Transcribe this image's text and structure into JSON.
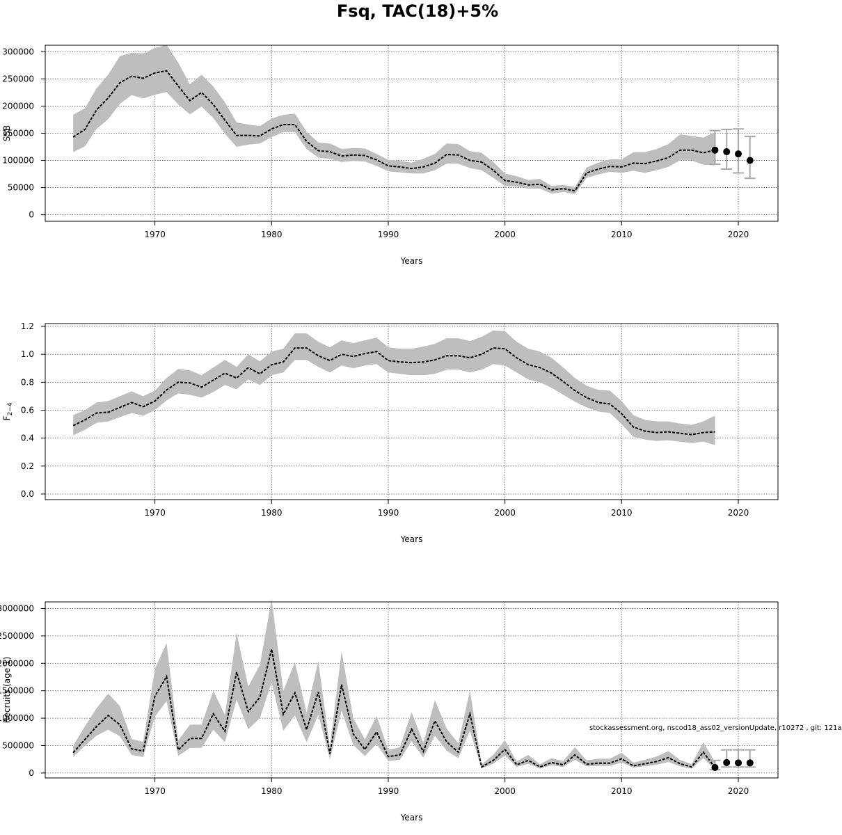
{
  "title": "Fsq, TAC(18)+5%",
  "footnote": "stockassessment.org, nscod18_ass02_versionUpdate, r10272 , git: 121a",
  "colors": {
    "band": "#bebebe",
    "line": "#000000",
    "grid": "#555555",
    "errorbar": "#a8a8a8"
  },
  "chart_data": [
    {
      "type": "line",
      "xlabel": "Years",
      "ylabel": "SSB",
      "xlim": [
        1960.6,
        2023.4
      ],
      "ylim": [
        -12000,
        312000
      ],
      "yticks": [
        0,
        50000,
        100000,
        150000,
        200000,
        250000,
        300000
      ],
      "ytick_labels": [
        "0",
        "50000",
        "100000",
        "150000",
        "200000",
        "250000",
        "300000"
      ],
      "xticks": [
        1970,
        1980,
        1990,
        2000,
        2010,
        2020
      ],
      "xtick_labels": [
        "1970",
        "1980",
        "1990",
        "2000",
        "2010",
        "2020"
      ],
      "grid": true,
      "x": [
        1963,
        1964,
        1965,
        1966,
        1967,
        1968,
        1969,
        1970,
        1971,
        1972,
        1973,
        1974,
        1975,
        1976,
        1977,
        1978,
        1979,
        1980,
        1981,
        1982,
        1983,
        1984,
        1985,
        1986,
        1987,
        1988,
        1989,
        1990,
        1991,
        1992,
        1993,
        1994,
        1995,
        1996,
        1997,
        1998,
        1999,
        2000,
        2001,
        2002,
        2003,
        2004,
        2005,
        2006,
        2007,
        2008,
        2009,
        2010,
        2011,
        2012,
        2013,
        2014,
        2015,
        2016,
        2017,
        2018
      ],
      "estimate": [
        143000,
        157000,
        193000,
        215000,
        243000,
        255000,
        251000,
        261000,
        265000,
        237000,
        210000,
        225000,
        203000,
        174000,
        146000,
        146000,
        145000,
        158000,
        166000,
        166000,
        135000,
        118000,
        116000,
        108000,
        110000,
        109000,
        101000,
        90000,
        88000,
        85000,
        88000,
        95000,
        111000,
        110000,
        100000,
        97000,
        82000,
        63000,
        60000,
        55000,
        56000,
        46000,
        48000,
        44000,
        77000,
        84000,
        89000,
        88000,
        95000,
        94000,
        99000,
        105000,
        119000,
        119000,
        114000,
        119000
      ],
      "lower": [
        115000,
        126000,
        158000,
        176000,
        204000,
        220000,
        214000,
        221000,
        226000,
        203000,
        185000,
        199000,
        178000,
        149000,
        125000,
        129000,
        131000,
        143000,
        152000,
        152000,
        121000,
        105000,
        103000,
        97000,
        99000,
        98000,
        90000,
        80000,
        78000,
        76000,
        76000,
        82000,
        94000,
        94000,
        86000,
        82000,
        68000,
        53000,
        52000,
        48000,
        48000,
        39000,
        42000,
        38000,
        68000,
        74000,
        79000,
        77000,
        81000,
        77000,
        82000,
        88000,
        100000,
        100000,
        92000,
        91000
      ],
      "upper": [
        184000,
        196000,
        233000,
        258000,
        292000,
        298000,
        297000,
        307000,
        313000,
        280000,
        240000,
        258000,
        236000,
        207000,
        170000,
        166000,
        163000,
        177000,
        184000,
        186000,
        153000,
        133000,
        131000,
        121000,
        123000,
        122000,
        112000,
        101000,
        99000,
        96000,
        103000,
        112000,
        131000,
        130000,
        117000,
        114000,
        97000,
        76000,
        71000,
        64000,
        66000,
        53000,
        55000,
        51000,
        87000,
        96000,
        102000,
        102000,
        115000,
        115000,
        121000,
        130000,
        148000,
        145000,
        142000,
        152000
      ],
      "forecast": {
        "x": [
          2018,
          2019,
          2020,
          2021
        ],
        "estimate": [
          119000,
          116000,
          112000,
          100000
        ],
        "lower": [
          93000,
          84000,
          77000,
          67000
        ],
        "upper": [
          155000,
          157000,
          158000,
          144000
        ]
      }
    },
    {
      "type": "line",
      "xlabel": "Years",
      "ylabel": "F",
      "ylabel_sub": "2−4",
      "xlim": [
        1960.6,
        2023.4
      ],
      "ylim": [
        -0.04,
        1.22
      ],
      "yticks": [
        0,
        0.2,
        0.4,
        0.6,
        0.8,
        1,
        1.2
      ],
      "ytick_labels": [
        "0.0",
        "0.2",
        "0.4",
        "0.6",
        "0.8",
        "1.0",
        "1.2"
      ],
      "xticks": [
        1970,
        1980,
        1990,
        2000,
        2010,
        2020
      ],
      "xtick_labels": [
        "1970",
        "1980",
        "1990",
        "2000",
        "2010",
        "2020"
      ],
      "grid": true,
      "x": [
        1963,
        1964,
        1965,
        1966,
        1967,
        1968,
        1969,
        1970,
        1971,
        1972,
        1973,
        1974,
        1975,
        1976,
        1977,
        1978,
        1979,
        1980,
        1981,
        1982,
        1983,
        1984,
        1985,
        1986,
        1987,
        1988,
        1989,
        1990,
        1991,
        1992,
        1993,
        1994,
        1995,
        1996,
        1997,
        1998,
        1999,
        2000,
        2001,
        2002,
        2003,
        2004,
        2005,
        2006,
        2007,
        2008,
        2009,
        2010,
        2011,
        2012,
        2013,
        2014,
        2015,
        2016,
        2017,
        2018
      ],
      "estimate": [
        0.49,
        0.53,
        0.58,
        0.585,
        0.62,
        0.655,
        0.625,
        0.665,
        0.745,
        0.8,
        0.795,
        0.765,
        0.815,
        0.865,
        0.83,
        0.905,
        0.86,
        0.925,
        0.945,
        1.045,
        1.045,
        0.99,
        0.955,
        1.0,
        0.985,
        1.005,
        1.02,
        0.955,
        0.945,
        0.94,
        0.945,
        0.96,
        0.99,
        0.99,
        0.975,
        1.0,
        1.045,
        1.04,
        0.975,
        0.925,
        0.905,
        0.865,
        0.805,
        0.74,
        0.69,
        0.655,
        0.645,
        0.575,
        0.48,
        0.45,
        0.44,
        0.445,
        0.435,
        0.425,
        0.44,
        0.445
      ],
      "lower": [
        0.42,
        0.46,
        0.51,
        0.52,
        0.55,
        0.58,
        0.56,
        0.6,
        0.67,
        0.72,
        0.71,
        0.69,
        0.73,
        0.78,
        0.75,
        0.82,
        0.78,
        0.85,
        0.87,
        0.96,
        0.96,
        0.91,
        0.87,
        0.92,
        0.9,
        0.92,
        0.93,
        0.87,
        0.86,
        0.85,
        0.85,
        0.86,
        0.89,
        0.89,
        0.87,
        0.89,
        0.93,
        0.92,
        0.87,
        0.82,
        0.8,
        0.76,
        0.71,
        0.66,
        0.62,
        0.59,
        0.58,
        0.5,
        0.41,
        0.39,
        0.38,
        0.385,
        0.375,
        0.365,
        0.375,
        0.35
      ],
      "upper": [
        0.565,
        0.6,
        0.655,
        0.665,
        0.7,
        0.735,
        0.7,
        0.74,
        0.83,
        0.895,
        0.885,
        0.85,
        0.905,
        0.96,
        0.91,
        1.0,
        0.95,
        1.02,
        1.04,
        1.15,
        1.15,
        1.09,
        1.05,
        1.1,
        1.08,
        1.1,
        1.12,
        1.05,
        1.04,
        1.04,
        1.055,
        1.075,
        1.115,
        1.115,
        1.095,
        1.125,
        1.17,
        1.165,
        1.09,
        1.04,
        1.02,
        0.975,
        0.905,
        0.83,
        0.775,
        0.745,
        0.74,
        0.665,
        0.565,
        0.53,
        0.52,
        0.52,
        0.505,
        0.495,
        0.52,
        0.56
      ]
    },
    {
      "type": "line",
      "xlabel": "Years",
      "ylabel": "Recruits (age 1)",
      "xlim": [
        1960.6,
        2023.4
      ],
      "ylim": [
        -90000,
        3120000
      ],
      "yticks": [
        0,
        500000,
        1000000,
        1500000,
        2000000,
        2500000,
        3000000
      ],
      "ytick_labels": [
        "0",
        "500000",
        "1000000",
        "1500000",
        "2000000",
        "2500000",
        "3000000"
      ],
      "xticks": [
        1970,
        1980,
        1990,
        2000,
        2010,
        2020
      ],
      "xtick_labels": [
        "1970",
        "1980",
        "1990",
        "2000",
        "2010",
        "2020"
      ],
      "grid": true,
      "x": [
        1963,
        1964,
        1965,
        1966,
        1967,
        1968,
        1969,
        1970,
        1971,
        1972,
        1973,
        1974,
        1975,
        1976,
        1977,
        1978,
        1979,
        1980,
        1981,
        1982,
        1983,
        1984,
        1985,
        1986,
        1987,
        1988,
        1989,
        1990,
        1991,
        1992,
        1993,
        1994,
        1995,
        1996,
        1997,
        1998,
        1999,
        2000,
        2001,
        2002,
        2003,
        2004,
        2005,
        2006,
        2007,
        2008,
        2009,
        2010,
        2011,
        2012,
        2013,
        2014,
        2015,
        2016,
        2017,
        2018
      ],
      "estimate": [
        370000,
        610000,
        850000,
        1050000,
        880000,
        440000,
        400000,
        1400000,
        1760000,
        420000,
        630000,
        630000,
        1080000,
        760000,
        1840000,
        1120000,
        1380000,
        2260000,
        1070000,
        1460000,
        790000,
        1480000,
        350000,
        1610000,
        710000,
        430000,
        750000,
        300000,
        330000,
        800000,
        390000,
        950000,
        570000,
        380000,
        1080000,
        110000,
        230000,
        430000,
        150000,
        230000,
        110000,
        190000,
        150000,
        330000,
        160000,
        180000,
        180000,
        260000,
        130000,
        170000,
        210000,
        280000,
        170000,
        110000,
        380000,
        100000
      ],
      "lower": [
        290000,
        500000,
        680000,
        790000,
        670000,
        330000,
        290000,
        1030000,
        1310000,
        310000,
        460000,
        460000,
        790000,
        560000,
        1340000,
        800000,
        1000000,
        1650000,
        770000,
        1050000,
        560000,
        1060000,
        250000,
        1140000,
        510000,
        310000,
        530000,
        220000,
        240000,
        580000,
        280000,
        680000,
        410000,
        270000,
        770000,
        80000,
        170000,
        320000,
        110000,
        170000,
        80000,
        140000,
        110000,
        240000,
        120000,
        130000,
        130000,
        190000,
        100000,
        120000,
        150000,
        200000,
        120000,
        80000,
        270000,
        60000
      ],
      "upper": [
        500000,
        850000,
        1180000,
        1450000,
        1220000,
        620000,
        570000,
        1900000,
        2370000,
        590000,
        880000,
        880000,
        1500000,
        1060000,
        2550000,
        1580000,
        1970000,
        3170000,
        1500000,
        2020000,
        1100000,
        2040000,
        480000,
        2220000,
        1000000,
        610000,
        1040000,
        420000,
        470000,
        1110000,
        550000,
        1330000,
        810000,
        540000,
        1500000,
        160000,
        330000,
        600000,
        210000,
        330000,
        160000,
        270000,
        220000,
        470000,
        230000,
        260000,
        260000,
        370000,
        190000,
        240000,
        300000,
        400000,
        240000,
        160000,
        560000,
        200000
      ],
      "forecast": {
        "x": [
          2018,
          2019,
          2020,
          2021
        ],
        "estimate": [
          100000,
          190000,
          185000,
          185000
        ],
        "lower": [
          60000,
          110000,
          110000,
          110000
        ],
        "upper": [
          230000,
          420000,
          420000,
          420000
        ]
      }
    }
  ]
}
